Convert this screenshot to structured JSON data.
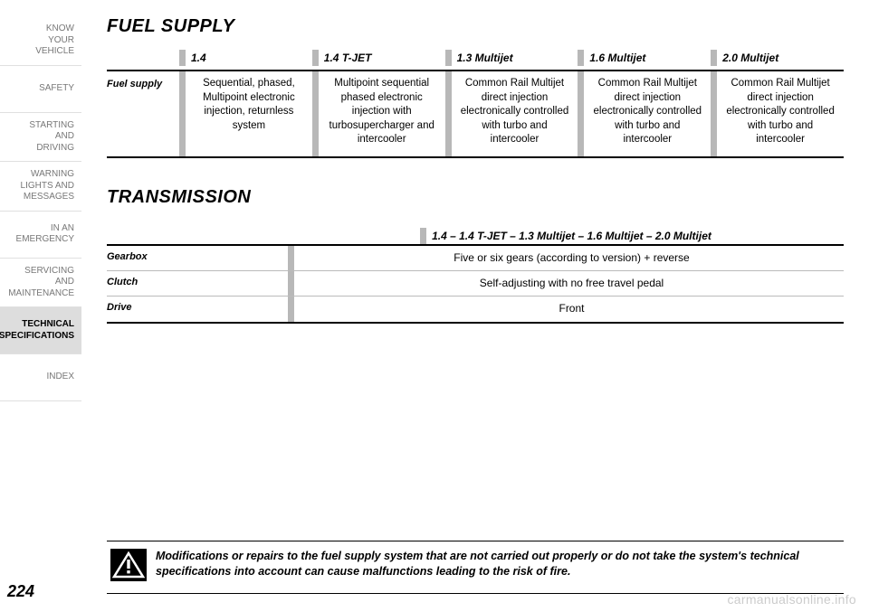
{
  "sidebar": {
    "items": [
      {
        "label": "KNOW\nYOUR\nVEHICLE"
      },
      {
        "label": "SAFETY"
      },
      {
        "label": "STARTING\nAND\nDRIVING"
      },
      {
        "label": "WARNING\nLIGHTS AND\nMESSAGES"
      },
      {
        "label": "IN AN\nEMERGENCY"
      },
      {
        "label": "SERVICING\nAND\nMAINTENANCE"
      },
      {
        "label": "TECHNICAL\nSPECIFICATIONS"
      },
      {
        "label": "INDEX"
      }
    ],
    "active_index": 6
  },
  "page_number": "224",
  "fuel_supply": {
    "title": "FUEL SUPPLY",
    "row_label": "Fuel supply",
    "columns": [
      {
        "header": "1.4",
        "text": "Sequential, phased, Multipoint electronic injection, returnless system"
      },
      {
        "header": "1.4 T-JET",
        "text": "Multipoint sequential phased electronic injection with turbosupercharger and intercooler"
      },
      {
        "header": "1.3 Multijet",
        "text": "Common Rail Multijet direct injection electronically controlled with turbo and intercooler"
      },
      {
        "header": "1.6 Multijet",
        "text": "Common Rail Multijet direct injection electronically controlled with turbo and intercooler"
      },
      {
        "header": "2.0 Multijet",
        "text": "Common Rail Multijet direct injection electronically controlled with turbo and intercooler"
      }
    ]
  },
  "transmission": {
    "title": "TRANSMISSION",
    "header": "1.4 – 1.4 T-JET – 1.3 Multijet – 1.6 Multijet – 2.0 Multijet",
    "rows": [
      {
        "label": "Gearbox",
        "value": "Five or six gears (according to version) + reverse"
      },
      {
        "label": "Clutch",
        "value": "Self-adjusting with no free travel pedal"
      },
      {
        "label": "Drive",
        "value": "Front"
      }
    ]
  },
  "warning": {
    "text": "Modifications or repairs to the fuel supply system that are not carried out properly or do not take the system's technical specifications into account can cause malfunctions leading to the risk of fire."
  },
  "watermark": "carmanualsonline.info",
  "colors": {
    "text": "#000000",
    "muted": "#777777",
    "grey_bar": "#b8b8b8",
    "active_bg": "#dddddd",
    "divider": "#e0e0e0",
    "watermark": "#cccccc",
    "background": "#ffffff"
  },
  "typography": {
    "title_fontsize": 20,
    "body_fontsize": 12,
    "sidebar_fontsize": 10,
    "page_number_fontsize": 18
  }
}
